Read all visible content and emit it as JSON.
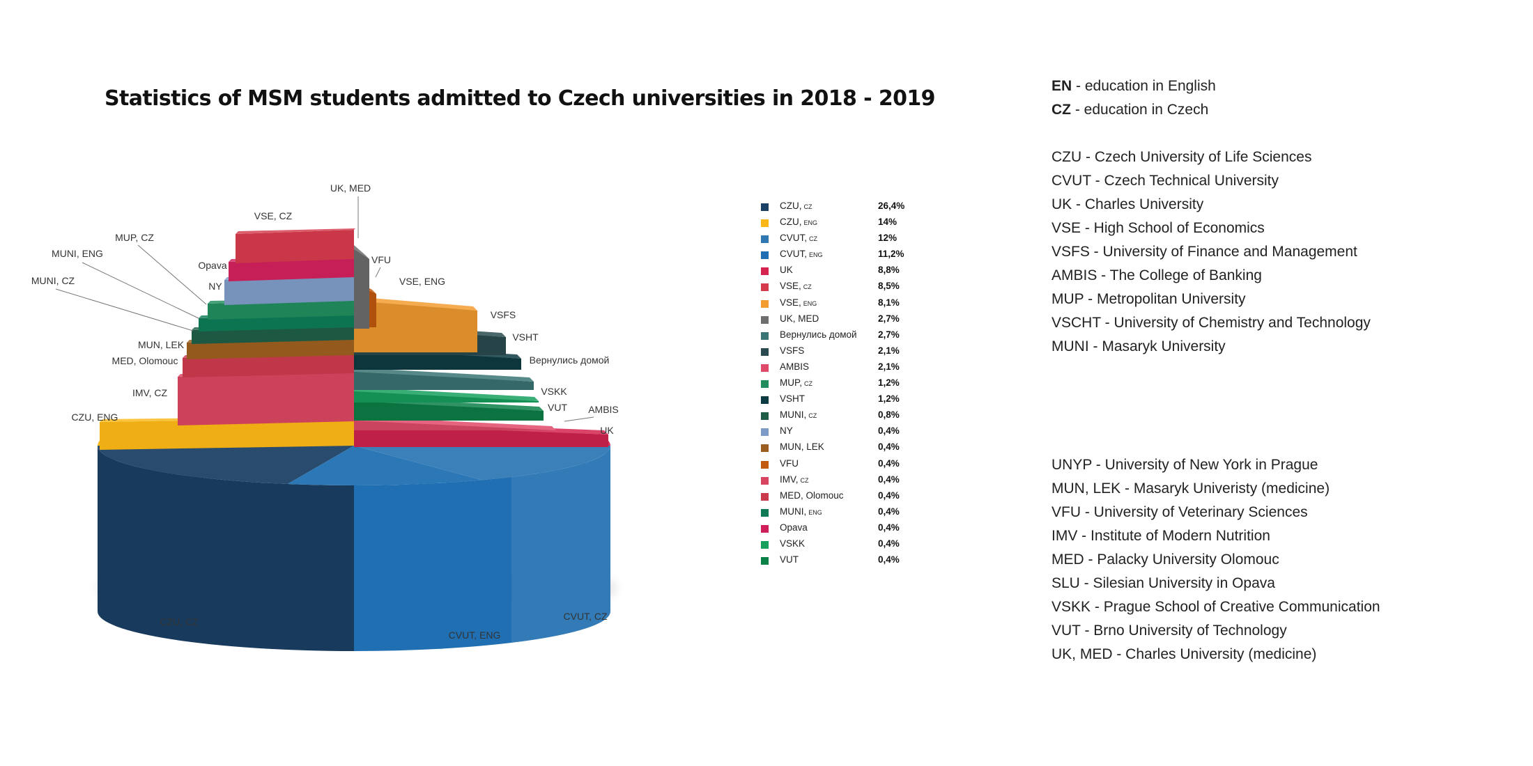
{
  "title": "Statistics of MSM students admitted to Czech universities in 2018 - 2019",
  "chart_data": {
    "type": "pie",
    "title": "Statistics of MSM students admitted to Czech universities in 2018 - 2019",
    "slices": [
      {
        "label": "CZU, CZ",
        "legend_main": "CZU,",
        "legend_sub": "CZ",
        "value": 26.4,
        "value_text": "26,4%",
        "color": "#1a4065",
        "pie_label": "CZU, CZ"
      },
      {
        "label": "CZU, ENG",
        "legend_main": "CZU,",
        "legend_sub": "ENG",
        "value": 14,
        "value_text": "14%",
        "color": "#fbb715",
        "pie_label": "CZU, ENG"
      },
      {
        "label": "CVUT, CZ",
        "legend_main": "CVUT,",
        "legend_sub": "CZ",
        "value": 12,
        "value_text": "12%",
        "color": "#2f78b4",
        "pie_label": "CVUT, CZ"
      },
      {
        "label": "CVUT, ENG",
        "legend_main": "CVUT,",
        "legend_sub": "ENG",
        "value": 11.2,
        "value_text": "11,2%",
        "color": "#1f6fb2",
        "pie_label": "CVUT, ENG"
      },
      {
        "label": "UK",
        "legend_main": "UK",
        "legend_sub": "",
        "value": 8.8,
        "value_text": "8,8%",
        "color": "#d4234f",
        "pie_label": "UK"
      },
      {
        "label": "VSE, CZ",
        "legend_main": "VSE,",
        "legend_sub": "CZ",
        "value": 8.5,
        "value_text": "8,5%",
        "color": "#d43a4c",
        "pie_label": "VSE, CZ"
      },
      {
        "label": "VSE, ENG",
        "legend_main": "VSE,",
        "legend_sub": "ENG",
        "value": 8.1,
        "value_text": "8,1%",
        "color": "#f39c30",
        "pie_label": "VSE, ENG"
      },
      {
        "label": "UK, MED",
        "legend_main": "UK, MED",
        "legend_sub": "",
        "value": 2.7,
        "value_text": "2,7%",
        "color": "#6e6e6e",
        "pie_label": "UK, MED"
      },
      {
        "label": "Вернулись домой",
        "legend_main": "Вернулись домой",
        "legend_sub": "",
        "value": 2.7,
        "value_text": "2,7%",
        "color": "#3b7474",
        "pie_label": "Вернулись домой"
      },
      {
        "label": "VSFS",
        "legend_main": "VSFS",
        "legend_sub": "",
        "value": 2.1,
        "value_text": "2,1%",
        "color": "#2a4c50",
        "pie_label": "VSFS"
      },
      {
        "label": "AMBIS",
        "legend_main": "AMBIS",
        "legend_sub": "",
        "value": 2.1,
        "value_text": "2,1%",
        "color": "#e04a6a",
        "pie_label": "AMBIS"
      },
      {
        "label": "MUP, CZ",
        "legend_main": "MUP,",
        "legend_sub": "CZ",
        "value": 1.2,
        "value_text": "1,2%",
        "color": "#218c5e",
        "pie_label": "MUP, CZ"
      },
      {
        "label": "VSHT",
        "legend_main": "VSHT",
        "legend_sub": "",
        "value": 1.2,
        "value_text": "1,2%",
        "color": "#0d3b43",
        "pie_label": "VSHT"
      },
      {
        "label": "MUNI, CZ",
        "legend_main": "MUNI,",
        "legend_sub": "CZ",
        "value": 0.8,
        "value_text": "0,8%",
        "color": "#1f5d46",
        "pie_label": "MUNI, CZ"
      },
      {
        "label": "NY",
        "legend_main": "NY",
        "legend_sub": "",
        "value": 0.4,
        "value_text": "0,4%",
        "color": "#7d9bc6",
        "pie_label": "NY"
      },
      {
        "label": "MUN, LEK",
        "legend_main": "MUN, LEK",
        "legend_sub": "",
        "value": 0.4,
        "value_text": "0,4%",
        "color": "#9c5e1f",
        "pie_label": "MUN, LEK"
      },
      {
        "label": "VFU",
        "legend_main": "VFU",
        "legend_sub": "",
        "value": 0.4,
        "value_text": "0,4%",
        "color": "#c25a0d",
        "pie_label": "VFU"
      },
      {
        "label": "IMV, CZ",
        "legend_main": "IMV,",
        "legend_sub": "CZ",
        "value": 0.4,
        "value_text": "0,4%",
        "color": "#d84560",
        "pie_label": "IMV, CZ"
      },
      {
        "label": "MED, Olomouc",
        "legend_main": "MED, Olomouc",
        "legend_sub": "",
        "value": 0.4,
        "value_text": "0,4%",
        "color": "#c93a4c",
        "pie_label": "MED, Olomouc"
      },
      {
        "label": "MUNI, ENG",
        "legend_main": "MUNI,",
        "legend_sub": "ENG",
        "value": 0.4,
        "value_text": "0,4%",
        "color": "#0e7a55",
        "pie_label": "MUNI, ENG"
      },
      {
        "label": "Opava",
        "legend_main": "Opava",
        "legend_sub": "",
        "value": 0.4,
        "value_text": "0,4%",
        "color": "#d0205c",
        "pie_label": "Opava"
      },
      {
        "label": "VSKK",
        "legend_main": "VSKK",
        "legend_sub": "",
        "value": 0.4,
        "value_text": "0,4%",
        "color": "#16a05e",
        "pie_label": "VSKK"
      },
      {
        "label": "VUT",
        "legend_main": "VUT",
        "legend_sub": "",
        "value": 0.4,
        "value_text": "0,4%",
        "color": "#0b8047",
        "pie_label": "VUT"
      }
    ]
  },
  "glossary": {
    "language_notes": [
      {
        "abbr": "EN",
        "text": " - education in English"
      },
      {
        "abbr": "CZ",
        "text": " - education in Czech"
      }
    ],
    "block1": [
      "CZU - Czech University of Life Sciences",
      "CVUT - Czech Technical University",
      "UK - Charles University",
      "VSE - High School of Economics",
      "VSFS - University of Finance and Management",
      "AMBIS - The College of Banking",
      "MUP - Metropolitan University",
      "VSCHT - University of Chemistry and Technology",
      "MUNI - Masaryk University"
    ],
    "block2": [
      "UNYP - University of New York in Prague",
      "MUN, LEK - Masaryk Univeristy (medicine)",
      "VFU - University of Veterinary Sciences",
      "IMV - Institute of Modern Nutrition",
      "MED - Palacky University Olomouc",
      "SLU - Silesian University in Opava",
      "VSKK - Prague School of Creative Communication",
      "VUT - Brno University of Technology",
      "UK, MED - Charles University (medicine)"
    ]
  }
}
